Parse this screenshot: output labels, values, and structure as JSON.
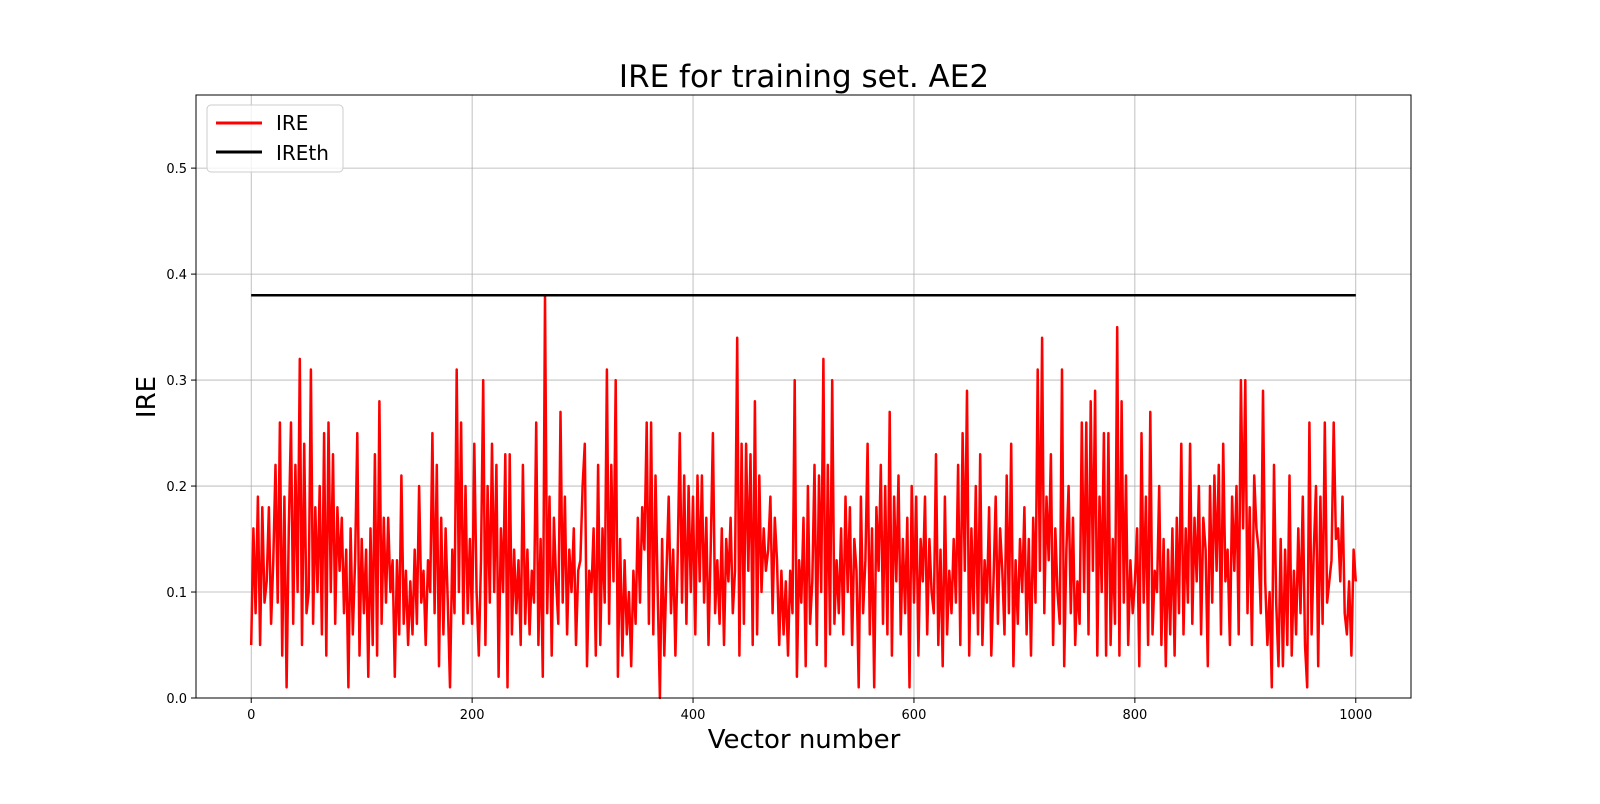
{
  "chart_data": {
    "type": "line",
    "title": "IRE for training set. AE2",
    "xlabel": "Vector number",
    "ylabel": "IRE",
    "xlim": [
      -50,
      1050
    ],
    "ylim": [
      0,
      0.569
    ],
    "xticks": [
      0,
      200,
      400,
      600,
      800,
      1000
    ],
    "yticks": [
      0.0,
      0.1,
      0.2,
      0.3,
      0.4,
      0.5
    ],
    "xtick_labels": [
      "0",
      "200",
      "400",
      "600",
      "800",
      "1000"
    ],
    "ytick_labels": [
      "0.0",
      "0.1",
      "0.2",
      "0.3",
      "0.4",
      "0.5"
    ],
    "grid": true,
    "legend_placement": "upper-left",
    "series": [
      {
        "name": "IRE",
        "color": "#ff0000",
        "x_start": 0,
        "x_step": 2,
        "values": [
          0.05,
          0.16,
          0.08,
          0.19,
          0.05,
          0.18,
          0.09,
          0.11,
          0.18,
          0.07,
          0.13,
          0.22,
          0.09,
          0.26,
          0.04,
          0.19,
          0.01,
          0.16,
          0.26,
          0.07,
          0.22,
          0.1,
          0.32,
          0.05,
          0.24,
          0.08,
          0.1,
          0.31,
          0.07,
          0.18,
          0.1,
          0.2,
          0.06,
          0.25,
          0.04,
          0.26,
          0.1,
          0.23,
          0.07,
          0.18,
          0.12,
          0.17,
          0.08,
          0.14,
          0.01,
          0.16,
          0.06,
          0.13,
          0.25,
          0.04,
          0.15,
          0.08,
          0.14,
          0.02,
          0.16,
          0.05,
          0.23,
          0.04,
          0.28,
          0.07,
          0.17,
          0.09,
          0.17,
          0.1,
          0.13,
          0.02,
          0.13,
          0.06,
          0.21,
          0.07,
          0.12,
          0.05,
          0.11,
          0.06,
          0.14,
          0.07,
          0.2,
          0.09,
          0.12,
          0.05,
          0.13,
          0.1,
          0.25,
          0.08,
          0.22,
          0.03,
          0.17,
          0.06,
          0.16,
          0.09,
          0.01,
          0.14,
          0.08,
          0.31,
          0.1,
          0.26,
          0.07,
          0.2,
          0.08,
          0.15,
          0.07,
          0.24,
          0.1,
          0.04,
          0.13,
          0.3,
          0.05,
          0.2,
          0.09,
          0.24,
          0.1,
          0.22,
          0.02,
          0.16,
          0.1,
          0.23,
          0.01,
          0.23,
          0.06,
          0.14,
          0.08,
          0.13,
          0.05,
          0.22,
          0.07,
          0.14,
          0.06,
          0.12,
          0.09,
          0.26,
          0.05,
          0.15,
          0.02,
          0.38,
          0.08,
          0.19,
          0.04,
          0.17,
          0.11,
          0.07,
          0.27,
          0.09,
          0.19,
          0.06,
          0.14,
          0.1,
          0.16,
          0.05,
          0.12,
          0.13,
          0.2,
          0.24,
          0.03,
          0.12,
          0.1,
          0.16,
          0.04,
          0.22,
          0.05,
          0.16,
          0.09,
          0.31,
          0.07,
          0.22,
          0.11,
          0.3,
          0.02,
          0.15,
          0.04,
          0.13,
          0.06,
          0.1,
          0.03,
          0.12,
          0.07,
          0.17,
          0.09,
          0.18,
          0.14,
          0.26,
          0.07,
          0.26,
          0.06,
          0.21,
          0.1,
          0.0,
          0.15,
          0.04,
          0.12,
          0.19,
          0.08,
          0.14,
          0.04,
          0.13,
          0.25,
          0.09,
          0.21,
          0.07,
          0.2,
          0.1,
          0.19,
          0.06,
          0.21,
          0.11,
          0.21,
          0.09,
          0.17,
          0.05,
          0.14,
          0.25,
          0.08,
          0.13,
          0.07,
          0.16,
          0.05,
          0.15,
          0.11,
          0.17,
          0.08,
          0.12,
          0.34,
          0.04,
          0.24,
          0.07,
          0.24,
          0.12,
          0.23,
          0.05,
          0.28,
          0.06,
          0.21,
          0.1,
          0.16,
          0.12,
          0.14,
          0.19,
          0.08,
          0.17,
          0.13,
          0.05,
          0.12,
          0.06,
          0.11,
          0.04,
          0.12,
          0.08,
          0.3,
          0.02,
          0.13,
          0.09,
          0.17,
          0.03,
          0.2,
          0.07,
          0.11,
          0.22,
          0.05,
          0.21,
          0.1,
          0.32,
          0.03,
          0.22,
          0.06,
          0.3,
          0.07,
          0.13,
          0.08,
          0.16,
          0.06,
          0.19,
          0.1,
          0.18,
          0.05,
          0.15,
          0.12,
          0.01,
          0.19,
          0.08,
          0.13,
          0.24,
          0.06,
          0.16,
          0.01,
          0.18,
          0.12,
          0.22,
          0.07,
          0.2,
          0.06,
          0.27,
          0.04,
          0.19,
          0.11,
          0.21,
          0.06,
          0.15,
          0.08,
          0.17,
          0.01,
          0.2,
          0.09,
          0.19,
          0.04,
          0.15,
          0.11,
          0.19,
          0.06,
          0.15,
          0.1,
          0.08,
          0.23,
          0.05,
          0.14,
          0.03,
          0.19,
          0.06,
          0.12,
          0.08,
          0.15,
          0.09,
          0.22,
          0.05,
          0.25,
          0.12,
          0.29,
          0.04,
          0.16,
          0.08,
          0.2,
          0.06,
          0.23,
          0.05,
          0.13,
          0.09,
          0.18,
          0.04,
          0.11,
          0.19,
          0.07,
          0.16,
          0.12,
          0.06,
          0.21,
          0.08,
          0.24,
          0.03,
          0.13,
          0.07,
          0.15,
          0.1,
          0.18,
          0.06,
          0.15,
          0.04,
          0.17,
          0.09,
          0.31,
          0.12,
          0.34,
          0.08,
          0.19,
          0.13,
          0.23,
          0.05,
          0.16,
          0.1,
          0.07,
          0.31,
          0.03,
          0.14,
          0.2,
          0.08,
          0.17,
          0.05,
          0.11,
          0.07,
          0.26,
          0.1,
          0.26,
          0.06,
          0.28,
          0.12,
          0.29,
          0.04,
          0.19,
          0.1,
          0.25,
          0.04,
          0.25,
          0.05,
          0.15,
          0.07,
          0.35,
          0.04,
          0.28,
          0.09,
          0.21,
          0.05,
          0.13,
          0.08,
          0.11,
          0.16,
          0.03,
          0.25,
          0.09,
          0.19,
          0.05,
          0.27,
          0.06,
          0.12,
          0.1,
          0.2,
          0.05,
          0.15,
          0.03,
          0.14,
          0.06,
          0.16,
          0.04,
          0.17,
          0.08,
          0.24,
          0.06,
          0.16,
          0.09,
          0.24,
          0.07,
          0.17,
          0.11,
          0.2,
          0.06,
          0.17,
          0.14,
          0.03,
          0.2,
          0.09,
          0.21,
          0.12,
          0.22,
          0.06,
          0.24,
          0.11,
          0.14,
          0.05,
          0.19,
          0.12,
          0.2,
          0.06,
          0.3,
          0.16,
          0.3,
          0.08,
          0.18,
          0.05,
          0.21,
          0.16,
          0.14,
          0.08,
          0.29,
          0.11,
          0.05,
          0.1,
          0.01,
          0.22,
          0.09,
          0.03,
          0.15,
          0.03,
          0.14,
          0.05,
          0.21,
          0.04,
          0.12,
          0.06,
          0.16,
          0.08,
          0.19,
          0.05,
          0.01,
          0.26,
          0.06,
          0.14,
          0.2,
          0.03,
          0.19,
          0.07,
          0.26,
          0.09,
          0.11,
          0.13,
          0.26,
          0.15,
          0.16,
          0.11,
          0.19,
          0.08,
          0.06,
          0.11,
          0.04,
          0.14,
          0.11
        ]
      },
      {
        "name": "IREth",
        "color": "#000000",
        "x": [
          0,
          1000
        ],
        "values": [
          0.38,
          0.38
        ]
      }
    ]
  }
}
